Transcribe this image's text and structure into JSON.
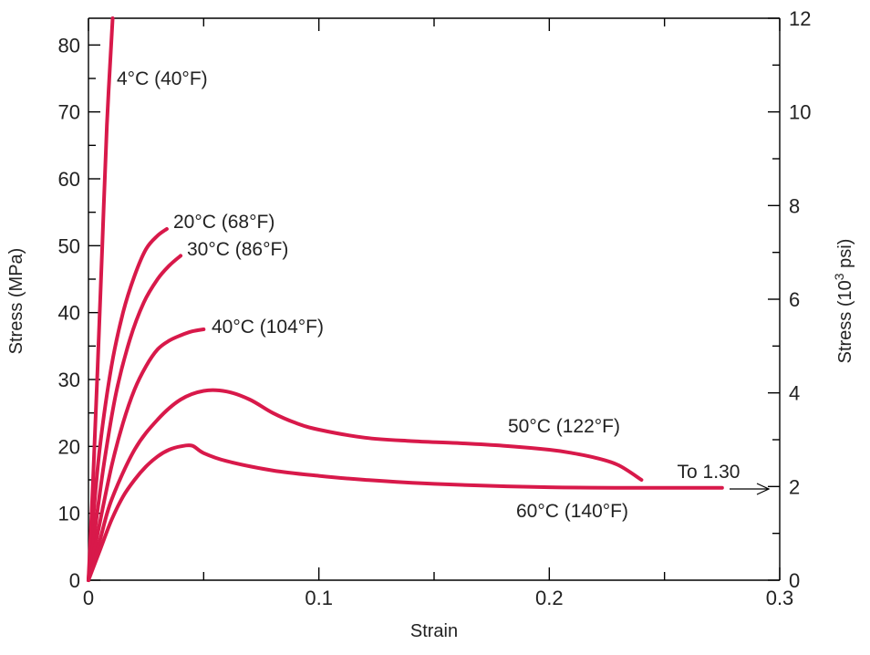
{
  "chart_data": {
    "type": "line",
    "xlabel": "Strain",
    "ylabel": "Stress (MPa)",
    "y2label": "Stress (10³ psi)",
    "xlim": [
      0,
      0.3
    ],
    "ylim": [
      0,
      84
    ],
    "y2lim": [
      0,
      12
    ],
    "x_ticks": [
      0,
      0.1,
      0.2,
      0.3
    ],
    "x_tick_labels": [
      "0",
      "0.1",
      "0.2",
      "0.3"
    ],
    "y_ticks": [
      0,
      10,
      20,
      30,
      40,
      50,
      60,
      70,
      80
    ],
    "y_tick_labels": [
      "0",
      "10",
      "20",
      "30",
      "40",
      "50",
      "60",
      "70",
      "80"
    ],
    "y2_ticks": [
      0,
      2,
      4,
      6,
      8,
      10,
      12
    ],
    "y2_tick_labels": [
      "0",
      "2",
      "4",
      "6",
      "8",
      "10",
      "12"
    ],
    "grid": false,
    "line_color": "#d8194a",
    "series": [
      {
        "name": "4°C (40°F)",
        "x": [
          0,
          0.002,
          0.004,
          0.006,
          0.008,
          0.0105
        ],
        "y": [
          0,
          15,
          32,
          50,
          68,
          84
        ]
      },
      {
        "name": "20°C (68°F)",
        "x": [
          0,
          0.002,
          0.005,
          0.01,
          0.015,
          0.02,
          0.025,
          0.03,
          0.034
        ],
        "y": [
          0,
          9,
          20,
          32,
          40,
          45.5,
          49.5,
          51.5,
          52.5
        ]
      },
      {
        "name": "30°C (86°F)",
        "x": [
          0,
          0.003,
          0.007,
          0.012,
          0.018,
          0.024,
          0.03,
          0.035,
          0.04
        ],
        "y": [
          0,
          8,
          18,
          28,
          36,
          41.5,
          45,
          47,
          48.5
        ]
      },
      {
        "name": "40°C (104°F)",
        "x": [
          0,
          0.004,
          0.01,
          0.015,
          0.02,
          0.025,
          0.03,
          0.035,
          0.04,
          0.045,
          0.05
        ],
        "y": [
          0,
          7,
          17,
          23.5,
          28.5,
          32,
          34.5,
          35.8,
          36.6,
          37.2,
          37.5
        ]
      },
      {
        "name": "50°C (122°F)",
        "x": [
          0,
          0.005,
          0.01,
          0.02,
          0.03,
          0.04,
          0.05,
          0.06,
          0.07,
          0.08,
          0.09,
          0.1,
          0.12,
          0.14,
          0.16,
          0.18,
          0.2,
          0.21,
          0.22,
          0.23,
          0.24
        ],
        "y": [
          0,
          6,
          12,
          19.5,
          24,
          27,
          28.3,
          28.2,
          27,
          25,
          23.5,
          22.5,
          21.3,
          20.8,
          20.5,
          20.1,
          19.5,
          19,
          18.3,
          17.2,
          15
        ]
      },
      {
        "name": "60°C (140°F)",
        "x": [
          0,
          0.005,
          0.01,
          0.015,
          0.02,
          0.025,
          0.03,
          0.035,
          0.04,
          0.045,
          0.05,
          0.06,
          0.08,
          0.1,
          0.12,
          0.15,
          0.2,
          0.25,
          0.275
        ],
        "y": [
          0,
          4.5,
          9,
          12.5,
          15,
          17,
          18.5,
          19.5,
          20,
          20.1,
          19,
          17.8,
          16.4,
          15.6,
          15,
          14.4,
          13.9,
          13.8,
          13.8
        ]
      }
    ],
    "annotations": {
      "to_label": "To 1.30"
    }
  }
}
